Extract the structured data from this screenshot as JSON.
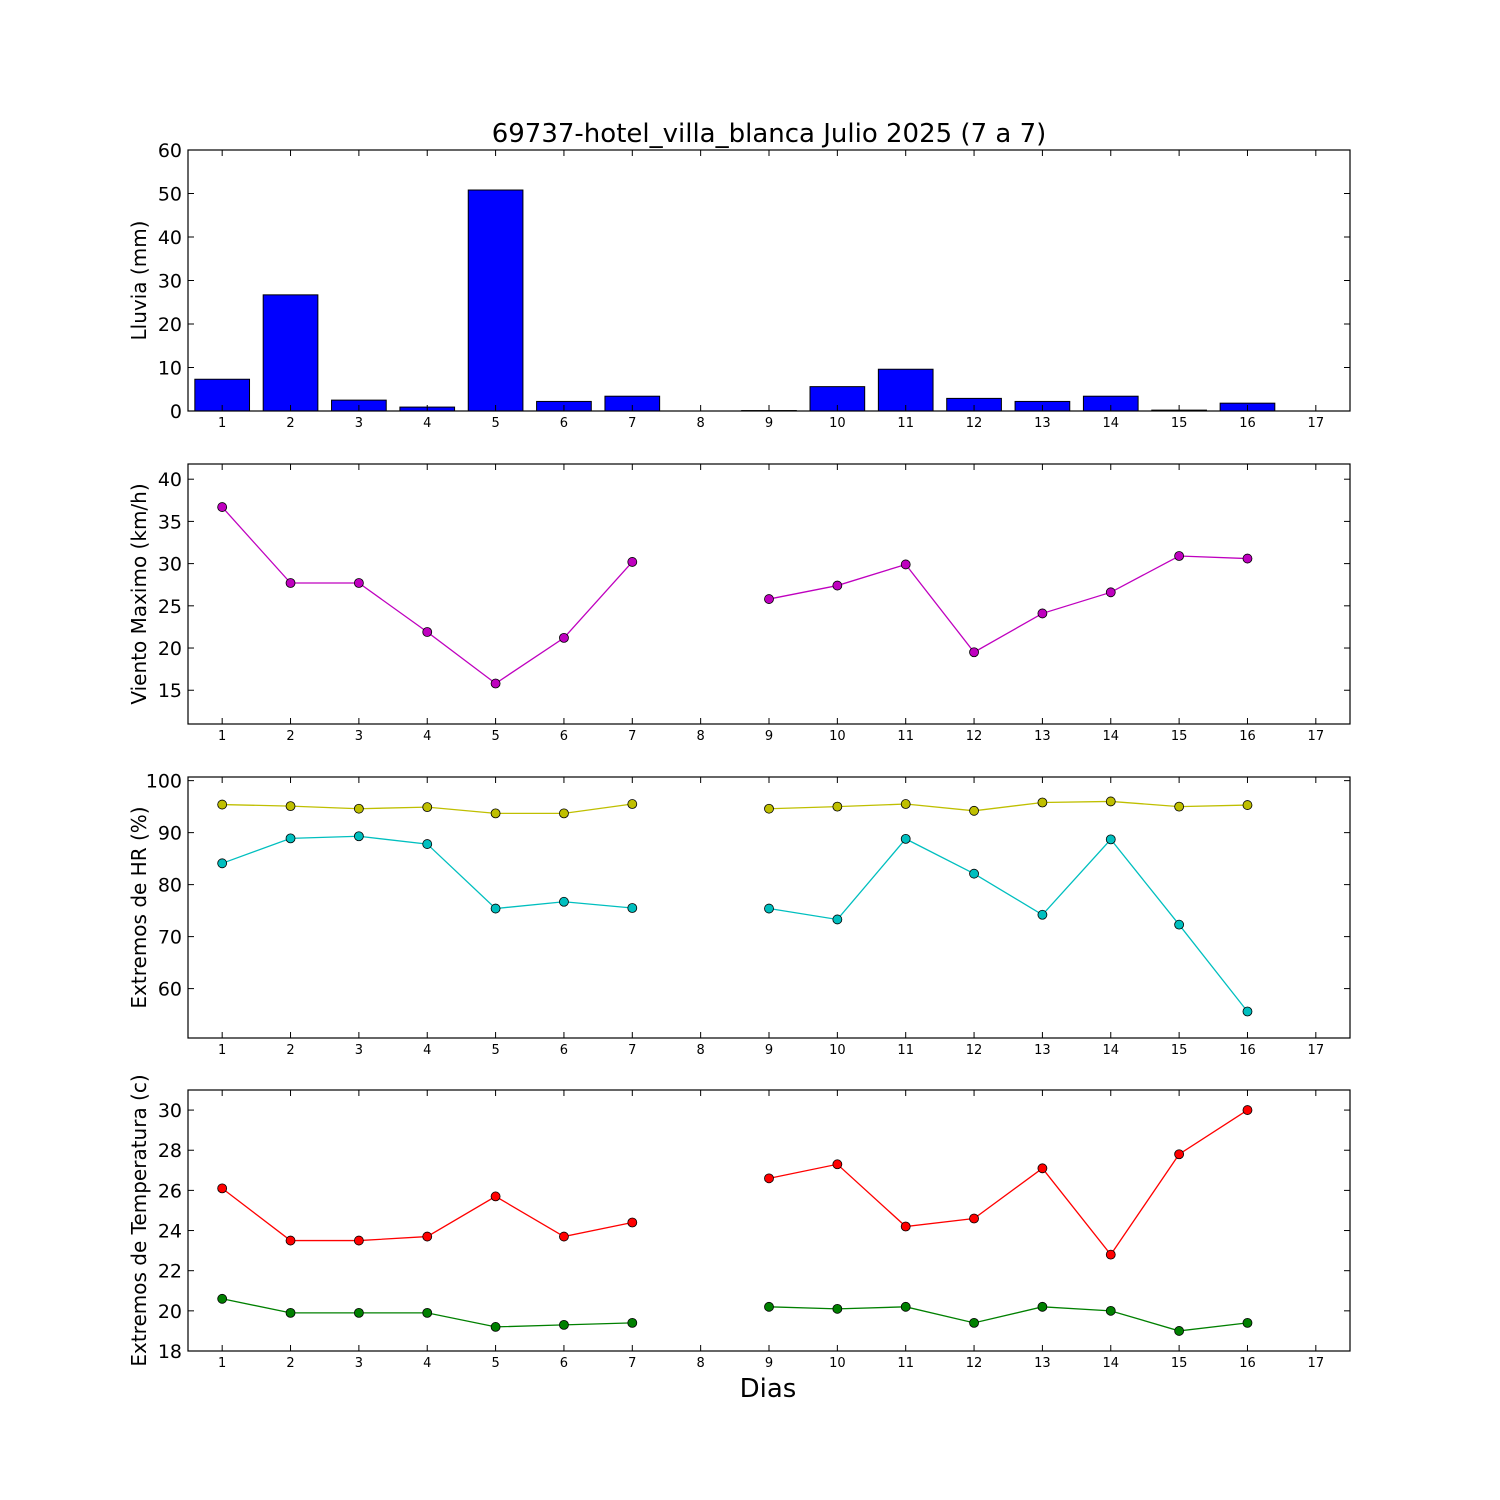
{
  "chart_data": [
    {
      "type": "bar",
      "title": "69737-hotel_villa_blanca Julio 2025  (7 a 7)",
      "ylabel": "Lluvia (mm)",
      "xlabel": "",
      "xlim": [
        0.5,
        17.5
      ],
      "ylim": [
        0,
        60
      ],
      "yticks": [
        0,
        10,
        20,
        30,
        40,
        50,
        60
      ],
      "categories": [
        "1",
        "2",
        "3",
        "4",
        "5",
        "6",
        "7",
        "8",
        "9",
        "10",
        "11",
        "12",
        "13",
        "14",
        "15",
        "16",
        "17"
      ],
      "values": [
        7.3,
        26.7,
        2.5,
        0.9,
        50.8,
        2.2,
        3.4,
        0,
        0.1,
        5.6,
        9.6,
        2.9,
        2.2,
        3.4,
        0.2,
        1.8,
        0
      ],
      "colors": {
        "bar": "#0000ff"
      }
    },
    {
      "type": "line",
      "title": "",
      "ylabel": "Viento Maximo (km/h)",
      "xlabel": "",
      "xlim": [
        0.5,
        17.5
      ],
      "ylim": [
        11,
        41.8
      ],
      "yticks": [
        15,
        20,
        25,
        30,
        35,
        40
      ],
      "x": [
        1,
        2,
        3,
        4,
        5,
        6,
        7,
        8,
        9,
        10,
        11,
        12,
        13,
        14,
        15,
        16,
        17
      ],
      "series": [
        {
          "values": [
            36.7,
            27.7,
            27.7,
            21.9,
            15.8,
            21.2,
            30.2,
            null,
            25.8,
            27.4,
            29.9,
            19.5,
            24.1,
            26.6,
            30.9,
            30.6,
            null
          ],
          "color": "#bf00bf"
        }
      ],
      "colors": {
        "line": "#bf00bf"
      }
    },
    {
      "type": "line",
      "title": "",
      "ylabel": "Extremos de HR (%)",
      "xlabel": "",
      "xlim": [
        0.5,
        17.5
      ],
      "ylim": [
        50.5,
        100.7
      ],
      "yticks": [
        60,
        70,
        80,
        90,
        100
      ],
      "x": [
        1,
        2,
        3,
        4,
        5,
        6,
        7,
        8,
        9,
        10,
        11,
        12,
        13,
        14,
        15,
        16,
        17
      ],
      "series": [
        {
          "values": [
            95.4,
            95.1,
            94.6,
            94.9,
            93.7,
            93.7,
            95.5,
            null,
            94.6,
            95.0,
            95.5,
            94.2,
            95.8,
            96.0,
            95.0,
            95.3,
            null
          ],
          "color": "#bfbf00"
        },
        {
          "values": [
            84.1,
            88.9,
            89.3,
            87.8,
            75.4,
            76.7,
            75.5,
            null,
            75.4,
            73.3,
            88.8,
            82.1,
            74.2,
            88.7,
            72.3,
            55.6,
            null
          ],
          "color": "#00bfbf"
        }
      ]
    },
    {
      "type": "line",
      "title": "",
      "ylabel": "Extremos de Temperatura (c)",
      "xlabel": "Dias",
      "xlim": [
        0.5,
        17.5
      ],
      "ylim": [
        18,
        31
      ],
      "yticks": [
        18,
        20,
        22,
        24,
        26,
        28,
        30
      ],
      "x": [
        1,
        2,
        3,
        4,
        5,
        6,
        7,
        8,
        9,
        10,
        11,
        12,
        13,
        14,
        15,
        16,
        17
      ],
      "series": [
        {
          "values": [
            26.1,
            23.5,
            23.5,
            23.7,
            25.7,
            23.7,
            24.4,
            null,
            26.6,
            27.3,
            24.2,
            24.6,
            27.1,
            22.8,
            27.8,
            30.0,
            null
          ],
          "color": "#ff0000"
        },
        {
          "values": [
            20.6,
            19.9,
            19.9,
            19.9,
            19.2,
            19.3,
            19.4,
            null,
            20.2,
            20.1,
            20.2,
            19.4,
            20.2,
            20.0,
            19.0,
            19.4,
            null
          ],
          "color": "#008000"
        }
      ]
    }
  ]
}
